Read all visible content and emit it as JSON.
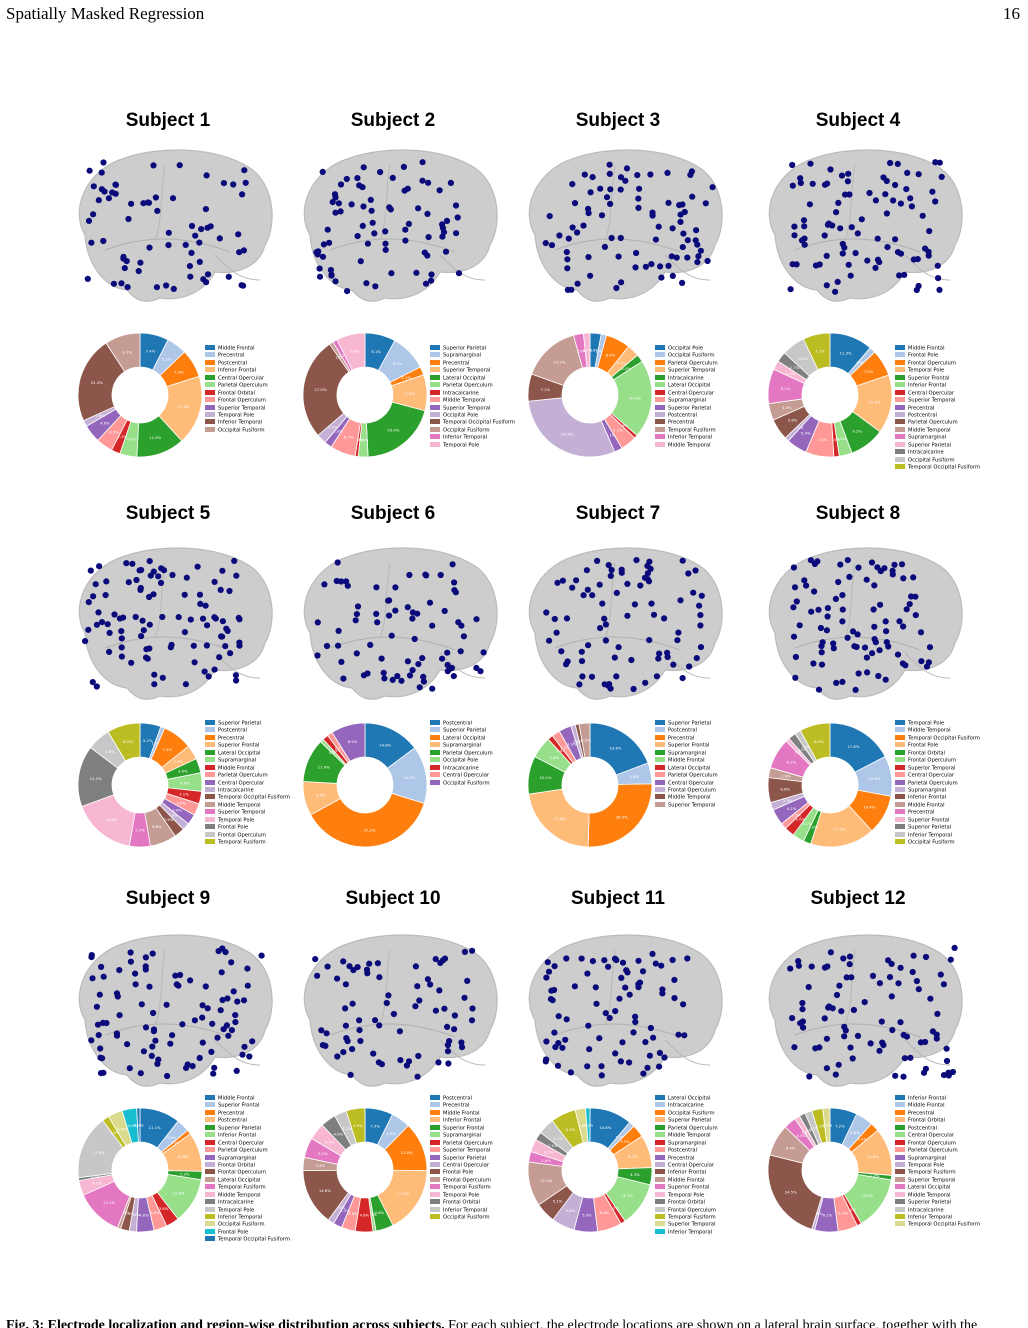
{
  "header": {
    "running_title": "Spatially Masked Regression",
    "page_number": "16"
  },
  "caption": {
    "label": "Fig. 3: Electrode localization and region-wise distribution across subjects.",
    "text": "For each subject, the electrode locations are shown on a lateral brain surface, together with the"
  },
  "colors": [
    "#1f77b4",
    "#aec7e8",
    "#ff7f0e",
    "#ffbb78",
    "#2ca02c",
    "#98df8a",
    "#d62728",
    "#ff9896",
    "#9467bd",
    "#c5b0d5",
    "#8c564b",
    "#c49c94",
    "#e377c2",
    "#f7b6d2",
    "#7f7f7f",
    "#c7c7c7",
    "#bcbd22",
    "#dbdb8d",
    "#17becf"
  ],
  "subjects": [
    {
      "title": "Subject 1",
      "legend": [
        "Middle Frontal",
        "Precentral",
        "Postcentral",
        "Inferior Frontal",
        "Central Opercular",
        "Parietal Operculum",
        "Frontal Orbital",
        "Frontal Operculum",
        "Superior Temporal",
        "Temporal Pole",
        "Inferior Temporal",
        "Occipital Fusiform"
      ],
      "chart_data": {
        "type": "pie",
        "values": [
          7.4,
          5.2,
          7.3,
          17.9,
          12.4,
          4.4,
          2.3,
          4.3,
          4.6,
          1.6,
          22.3,
          9.1
        ]
      }
    },
    {
      "title": "Subject 2",
      "legend": [
        "Superior Parietal",
        "Supramarginal",
        "Precentral",
        "Superior Temporal",
        "Lateral Occipital",
        "Parietal Operculum",
        "Intracalcarine",
        "Middle Temporal",
        "Superior Temporal",
        "Occipital Pole",
        "Temporal Occipital Fusiform",
        "Occipital Fusiform",
        "Inferior Temporal",
        "Temporal Pole"
      ],
      "chart_data": {
        "type": "pie",
        "values": [
          8.1,
          9.7,
          2.2,
          9.5,
          20.4,
          2.6,
          0.8,
          6.7,
          2.0,
          2.6,
          27.0,
          1.0,
          1.2,
          7.6
        ]
      }
    },
    {
      "title": "Subject 3",
      "legend": [
        "Occipital Pole",
        "Occipital Fusiform",
        "Parietal Operculum",
        "Superior Temporal",
        "Intracalcarine",
        "Lateral Occipital",
        "Central Opercular",
        "Supramarginal",
        "Superior Parietal",
        "Postcentral",
        "Precentral",
        "Temporal Fusiform",
        "Inferior Temporal",
        "Middle Temporal"
      ],
      "chart_data": {
        "type": "pie",
        "values": [
          2.9,
          1.4,
          6.4,
          3.2,
          2.0,
          20.4,
          0.9,
          4.2,
          2.1,
          29.9,
          7.1,
          15.2,
          2.6,
          1.7
        ]
      }
    },
    {
      "title": "Subject 4",
      "legend": [
        "Middle Frontal",
        "Frontal Pole",
        "Frontal Operculum",
        "Temporal Pole",
        "Superior Frontal",
        "Inferior Frontal",
        "Central Opercular",
        "Superior Temporal",
        "Precentral",
        "Postcentral",
        "Parietal Operculum",
        "Middle Temporal",
        "Supramarginal",
        "Superior Parietal",
        "Intracalcarine",
        "Occipital Fusiform",
        "Temporal Occipital Fusiform"
      ],
      "chart_data": {
        "type": "pie",
        "values": [
          11.3,
          1.6,
          7.0,
          15.4,
          9.2,
          3.4,
          1.4,
          7.4,
          5.4,
          1.1,
          5.6,
          4.4,
          9.1,
          2.4,
          2.7,
          6.1,
          7.1
        ]
      }
    },
    {
      "title": "Subject 5",
      "legend": [
        "Superior Parietal",
        "Postcentral",
        "Precentral",
        "Superior Frontal",
        "Lateral Occipital",
        "Supramarginal",
        "Middle Frontal",
        "Parietal Operculum",
        "Central Opercular",
        "Intracalcarine",
        "Temporal Occipital Fusiform",
        "Middle Temporal",
        "Superior Temporal",
        "Temporal Pole",
        "Frontal Pole",
        "Frontal Operculum",
        "Temporal Fusiform"
      ],
      "chart_data": {
        "type": "pie",
        "values": [
          5.2,
          1.0,
          7.4,
          3.6,
          3.6,
          4.6,
          3.1,
          3.0,
          2.6,
          1.8,
          2.6,
          6.6,
          5.2,
          15.8,
          15.2,
          5.8,
          8.2
        ]
      }
    },
    {
      "title": "Subject 6",
      "legend": [
        "Postcentral",
        "Superior Parietal",
        "Lateral Occipital",
        "Supramarginal",
        "Parietal Operculum",
        "Occipital Pole",
        "Intracalcarine",
        "Central Opercular",
        "Occipital Fusiform"
      ],
      "chart_data": {
        "type": "pie",
        "values": [
          14.8,
          15.0,
          37.2,
          8.9,
          11.4,
          0.9,
          1.5,
          1.4,
          8.9
        ]
      }
    },
    {
      "title": "Subject 7",
      "legend": [
        "Superior Parietal",
        "Postcentral",
        "Precentral",
        "Superior Frontal",
        "Supramarginal",
        "Middle Frontal",
        "Lateral Occipital",
        "Parietal Operculum",
        "Central Opercular",
        "Frontal Operculum",
        "Middle Temporal",
        "Superior Temporal"
      ],
      "chart_data": {
        "type": "pie",
        "values": [
          19.6,
          5.6,
          26.3,
          22.6,
          10.1,
          5.8,
          1.4,
          2.2,
          3.3,
          1.2,
          1.0,
          2.9
        ]
      }
    },
    {
      "title": "Subject 8",
      "legend": [
        "Temporal Pole",
        "Middle Temporal",
        "Temporal Occipital Fusiform",
        "Frontal Pole",
        "Frontal Orbital",
        "Frontal Operculum",
        "Superior Temporal",
        "Central Opercular",
        "Parietal Operculum",
        "Supramarginal",
        "Inferior Frontal",
        "Middle Frontal",
        "Precentral",
        "Superior Frontal",
        "Superior Parietal",
        "Inferior Temporal",
        "Occipital Fusiform"
      ],
      "chart_data": {
        "type": "pie",
        "values": [
          17.6,
          10.6,
          10.4,
          17.0,
          2.0,
          3.1,
          2.6,
          1.6,
          4.2,
          2.0,
          6.6,
          2.6,
          8.1,
          1.0,
          2.0,
          1.6,
          8.0
        ]
      }
    },
    {
      "title": "Subject 9",
      "legend": [
        "Middle Frontal",
        "Superior Frontal",
        "Precentral",
        "Postcentral",
        "Superior Parietal",
        "Inferior Frontal",
        "Central Opercular",
        "Parietal Operculum",
        "Supramarginal",
        "Frontal Orbital",
        "Frontal Operculum",
        "Lateral Occipital",
        "Temporal Fusiform",
        "Middle Temporal",
        "Intracalcarine",
        "Temporal Pole",
        "Inferior Temporal",
        "Occipital Fusiform",
        "Frontal Pole",
        "Temporal Occipital Fusiform"
      ],
      "chart_data": {
        "type": "pie",
        "values": [
          11.1,
          3.6,
          1.2,
          10.8,
          2.3,
          12.6,
          3.6,
          3.6,
          4.8,
          2.0,
          2.4,
          0.9,
          13.1,
          4.1,
          0.8,
          17.6,
          1.9,
          4.0,
          4.0,
          0.9
        ]
      }
    },
    {
      "title": "Subject 10",
      "legend": [
        "Postcentral",
        "Precentral",
        "Middle Frontal",
        "Inferior Frontal",
        "Superior Frontal",
        "Supramarginal",
        "Parietal Operculum",
        "Superior Temporal",
        "Superior Parietal",
        "Central Opercular",
        "Frontal Pole",
        "Frontal Operculum",
        "Temporal Fusiform",
        "Temporal Pole",
        "Frontal Orbital",
        "Inferior Temporal",
        "Occipital Fusiform"
      ],
      "chart_data": {
        "type": "pie",
        "values": [
          7.3,
          5.0,
          12.8,
          17.4,
          4.6,
          0.8,
          4.6,
          3.6,
          2.3,
          1.6,
          14.8,
          3.4,
          5.2,
          4.4,
          4.0,
          3.2,
          4.9
        ]
      }
    },
    {
      "title": "Subject 11",
      "legend": [
        "Lateral Occipital",
        "Intracalcarine",
        "Occipital Fusiform",
        "Superior Parietal",
        "Parietal Operculum",
        "Middle Temporal",
        "Supramarginal",
        "Postcentral",
        "Precentral",
        "Central Opercular",
        "Inferior Frontal",
        "Middle Frontal",
        "Superior Frontal",
        "Temporal Pole",
        "Frontal Orbital",
        "Frontal Operculum",
        "Temporal Fusiform",
        "Superior Temporal",
        "Inferior Temporal"
      ],
      "chart_data": {
        "type": "pie",
        "values": [
          10.6,
          1.4,
          3.2,
          8.2,
          4.3,
          11.1,
          1.2,
          6.1,
          5.9,
          5.8,
          5.1,
          11.1,
          2.6,
          3.2,
          2.1,
          4.1,
          6.3,
          2.6,
          1.1
        ]
      }
    },
    {
      "title": "Subject 12",
      "legend": [
        "Inferior Frontal",
        "Middle Frontal",
        "Precentral",
        "Frontal Orbital",
        "Postcentral",
        "Central Opercular",
        "Frontal Operculum",
        "Parietal Operculum",
        "Supramarginal",
        "Temporal Pole",
        "Temporal Fusiform",
        "Superior Temporal",
        "Lateral Occipital",
        "Middle Temporal",
        "Superior Parietal",
        "Intracalcarine",
        "Inferior Temporal",
        "Temporal Occipital Fusiform"
      ],
      "chart_data": {
        "type": "pie",
        "values": [
          7.2,
          4.6,
          2.4,
          12.6,
          1.2,
          14.2,
          1.2,
          5.2,
          6.2,
          0.8,
          24.5,
          8.4,
          3.3,
          1.4,
          1.6,
          1.9,
          2.9,
          1.9
        ]
      }
    }
  ]
}
